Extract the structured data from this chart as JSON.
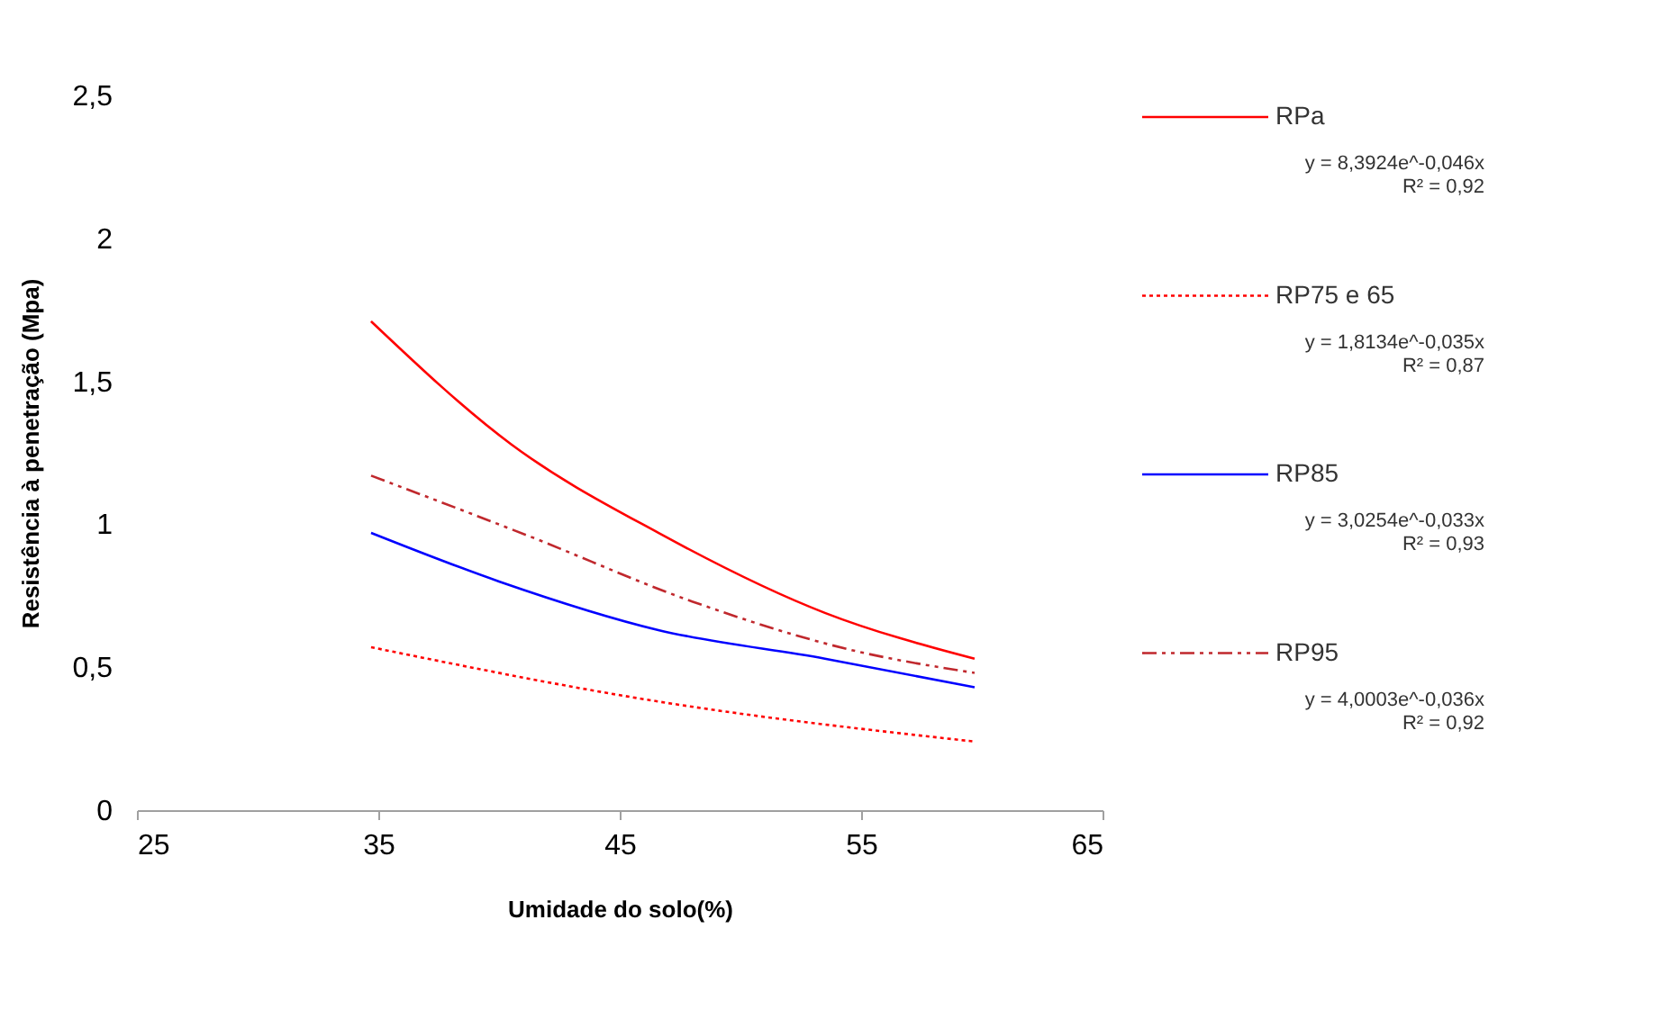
{
  "chart_data": {
    "type": "line",
    "xlabel": "Umidade do solo(%)",
    "ylabel": "Resistência à penetração (Mpa)",
    "xlim": [
      25,
      65
    ],
    "xticks": [
      25,
      35,
      45,
      55,
      65
    ],
    "ylim": [
      0,
      2.5
    ],
    "yticks": [
      0,
      {
        "value": 0.5,
        "label": "0,5"
      },
      1,
      {
        "value": 1.5,
        "label": "1,5"
      },
      2,
      {
        "value": 2.5,
        "label": "2,5"
      }
    ],
    "grid": false,
    "legend": "right",
    "marker": "none",
    "series": [
      {
        "name": "RPa",
        "color": "#ff0000",
        "line_style": "solid",
        "x": [
          34.7,
          40.5,
          46.6,
          53.5,
          59.7
        ],
        "values": [
          1.71,
          1.28,
          0.97,
          0.69,
          0.53
        ]
      },
      {
        "name": "RP75 e 65",
        "color": "#ff0000",
        "line_style": "dotted",
        "x": [
          34.7,
          46.6,
          59.7
        ],
        "values": [
          0.57,
          0.38,
          0.24
        ]
      },
      {
        "name": "RP85",
        "color": "#0000ff",
        "line_style": "solid",
        "x": [
          34.7,
          40.0,
          46.6,
          53.5,
          59.7
        ],
        "values": [
          0.97,
          0.8,
          0.63,
          0.53,
          0.43
        ]
      },
      {
        "name": "RP95",
        "color": "#c0282d",
        "line_style": "dashed",
        "x": [
          34.7,
          41.2,
          48.0,
          54.6,
          59.7
        ],
        "values": [
          1.17,
          0.96,
          0.73,
          0.56,
          0.48
        ]
      }
    ],
    "annotations": [
      "y = 8,3924e^-0,046x",
      "R² = 0,92",
      "y = 1,8134e^-0,035x",
      "R² = 0,87",
      "y = 3,0254e^-0,033x",
      "R² = 0,93",
      "y = 4,0003e^-0,036x",
      "R² = 0,92"
    ]
  }
}
